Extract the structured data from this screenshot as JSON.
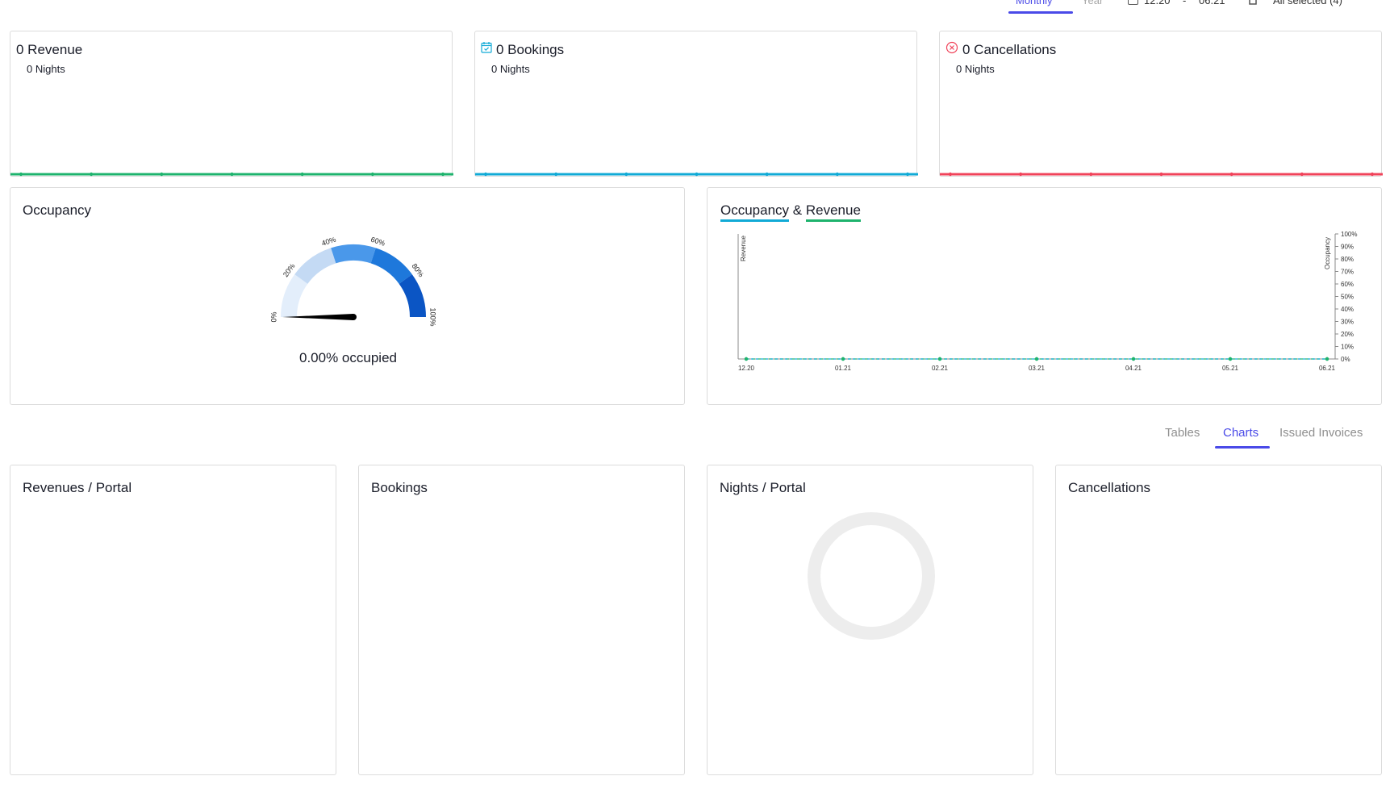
{
  "toolbar": {
    "monthly_label": "Monthly",
    "year_label": "Year",
    "date_from": "12.20",
    "date_separator": "-",
    "date_to": "06.21",
    "properties_label": "All selected (4)"
  },
  "summary": {
    "revenue": {
      "title": "0 Revenue",
      "sub": "0 Nights",
      "color": "#1eb36d"
    },
    "bookings": {
      "title": "0 Bookings",
      "sub": "0 Nights",
      "color": "#11aad6"
    },
    "cancellations": {
      "title": "0 Cancellations",
      "sub": "0 Nights",
      "color": "#f0435a"
    }
  },
  "occupancy": {
    "title": "Occupancy",
    "gauge_value": 0,
    "gauge_labels": [
      "0%",
      "20%",
      "40%",
      "60%",
      "80%",
      "100%"
    ],
    "caption": "0.00% occupied"
  },
  "occ_rev": {
    "title_part1": "Occupancy",
    "title_amp": "&",
    "title_part2": "Revenue",
    "occupancy_color": "#11aad6",
    "revenue_color": "#1eb36d"
  },
  "chart_data": {
    "type": "line",
    "x": [
      "12.20",
      "01.21",
      "02.21",
      "03.21",
      "04.21",
      "05.21",
      "06.21"
    ],
    "series": [
      {
        "name": "Revenue",
        "values": [
          0,
          0,
          0,
          0,
          0,
          0,
          0
        ]
      },
      {
        "name": "Occupancy",
        "values": [
          0,
          0,
          0,
          0,
          0,
          0,
          0
        ]
      }
    ],
    "ylabel": "Revenue",
    "y2label": "Occupancy",
    "y2ticks": [
      "0%",
      "10%",
      "20%",
      "30%",
      "40%",
      "50%",
      "60%",
      "70%",
      "80%",
      "90%",
      "100%"
    ],
    "y2lim": [
      0,
      100
    ]
  },
  "tabs": [
    {
      "label": "Tables",
      "active": false
    },
    {
      "label": "Charts",
      "active": true
    },
    {
      "label": "Issued Invoices",
      "active": false
    }
  ],
  "panels": {
    "revenues_portal": "Revenues / Portal",
    "bookings": "Bookings",
    "nights_portal": "Nights / Portal",
    "cancellations": "Cancellations"
  }
}
